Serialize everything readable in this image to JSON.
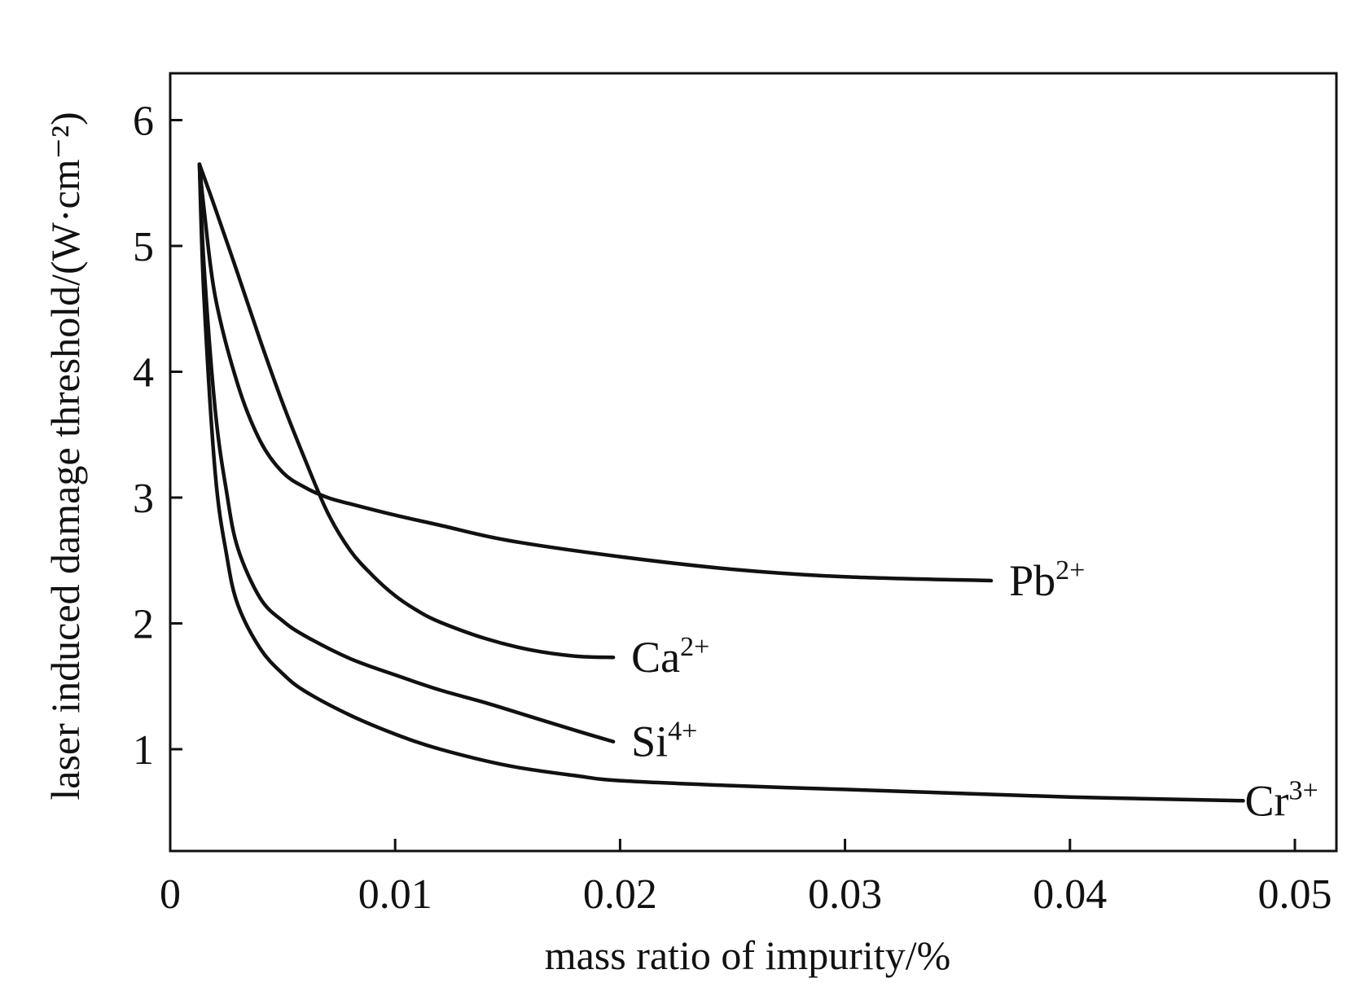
{
  "chart_data": {
    "type": "line",
    "title": "",
    "xlabel": "mass ratio of impurity/%",
    "ylabel": "laser induced damage threshold/(W·cm⁻²)",
    "xlim": [
      0,
      0.052
    ],
    "ylim": [
      0.35,
      6.4
    ],
    "xticks": [
      0,
      0.01,
      0.02,
      0.03,
      0.04,
      0.05
    ],
    "xtick_labels": [
      "0",
      "0.01",
      "0.02",
      "0.03",
      "0.04",
      "0.05"
    ],
    "yticks": [
      1,
      2,
      3,
      4,
      5,
      6
    ],
    "ytick_labels": [
      "1",
      "2",
      "3",
      "4",
      "5",
      "6"
    ],
    "grid": false,
    "legend": "inline labels at line ends",
    "line_color": "#111111",
    "series": [
      {
        "name": "Pb²⁺",
        "x": [
          0.0013,
          0.0015,
          0.002,
          0.003,
          0.004,
          0.005,
          0.006,
          0.007,
          0.008,
          0.01,
          0.012,
          0.015,
          0.02,
          0.025,
          0.03,
          0.0365
        ],
        "y": [
          5.65,
          5.3,
          4.6,
          3.9,
          3.45,
          3.2,
          3.08,
          3.0,
          2.95,
          2.86,
          2.78,
          2.66,
          2.53,
          2.43,
          2.37,
          2.34
        ]
      },
      {
        "name": "Ca²⁺",
        "x": [
          0.0013,
          0.002,
          0.003,
          0.004,
          0.005,
          0.006,
          0.007,
          0.008,
          0.009,
          0.01,
          0.011,
          0.012,
          0.014,
          0.016,
          0.018,
          0.0197
        ],
        "y": [
          5.65,
          5.3,
          4.78,
          4.25,
          3.75,
          3.3,
          2.88,
          2.58,
          2.38,
          2.22,
          2.1,
          2.01,
          1.88,
          1.79,
          1.74,
          1.73
        ]
      },
      {
        "name": "Si⁴⁺",
        "x": [
          0.0013,
          0.0015,
          0.002,
          0.0025,
          0.003,
          0.004,
          0.005,
          0.006,
          0.008,
          0.01,
          0.012,
          0.014,
          0.016,
          0.018,
          0.0197
        ],
        "y": [
          5.65,
          4.85,
          3.7,
          3.05,
          2.6,
          2.2,
          2.02,
          1.9,
          1.72,
          1.59,
          1.47,
          1.37,
          1.26,
          1.15,
          1.06
        ]
      },
      {
        "name": "Cr³⁺",
        "x": [
          0.0013,
          0.0015,
          0.002,
          0.0025,
          0.003,
          0.004,
          0.005,
          0.006,
          0.008,
          0.01,
          0.012,
          0.015,
          0.018,
          0.02,
          0.025,
          0.03,
          0.035,
          0.04,
          0.045,
          0.0477
        ],
        "y": [
          5.65,
          4.6,
          3.2,
          2.55,
          2.15,
          1.8,
          1.6,
          1.46,
          1.27,
          1.12,
          1.0,
          0.87,
          0.79,
          0.75,
          0.71,
          0.68,
          0.65,
          0.62,
          0.6,
          0.59
        ]
      }
    ],
    "series_labels": [
      {
        "base": "Pb",
        "sup": "2+"
      },
      {
        "base": "Ca",
        "sup": "2+"
      },
      {
        "base": "Si",
        "sup": "4+"
      },
      {
        "base": "Cr",
        "sup": "3+"
      }
    ]
  }
}
